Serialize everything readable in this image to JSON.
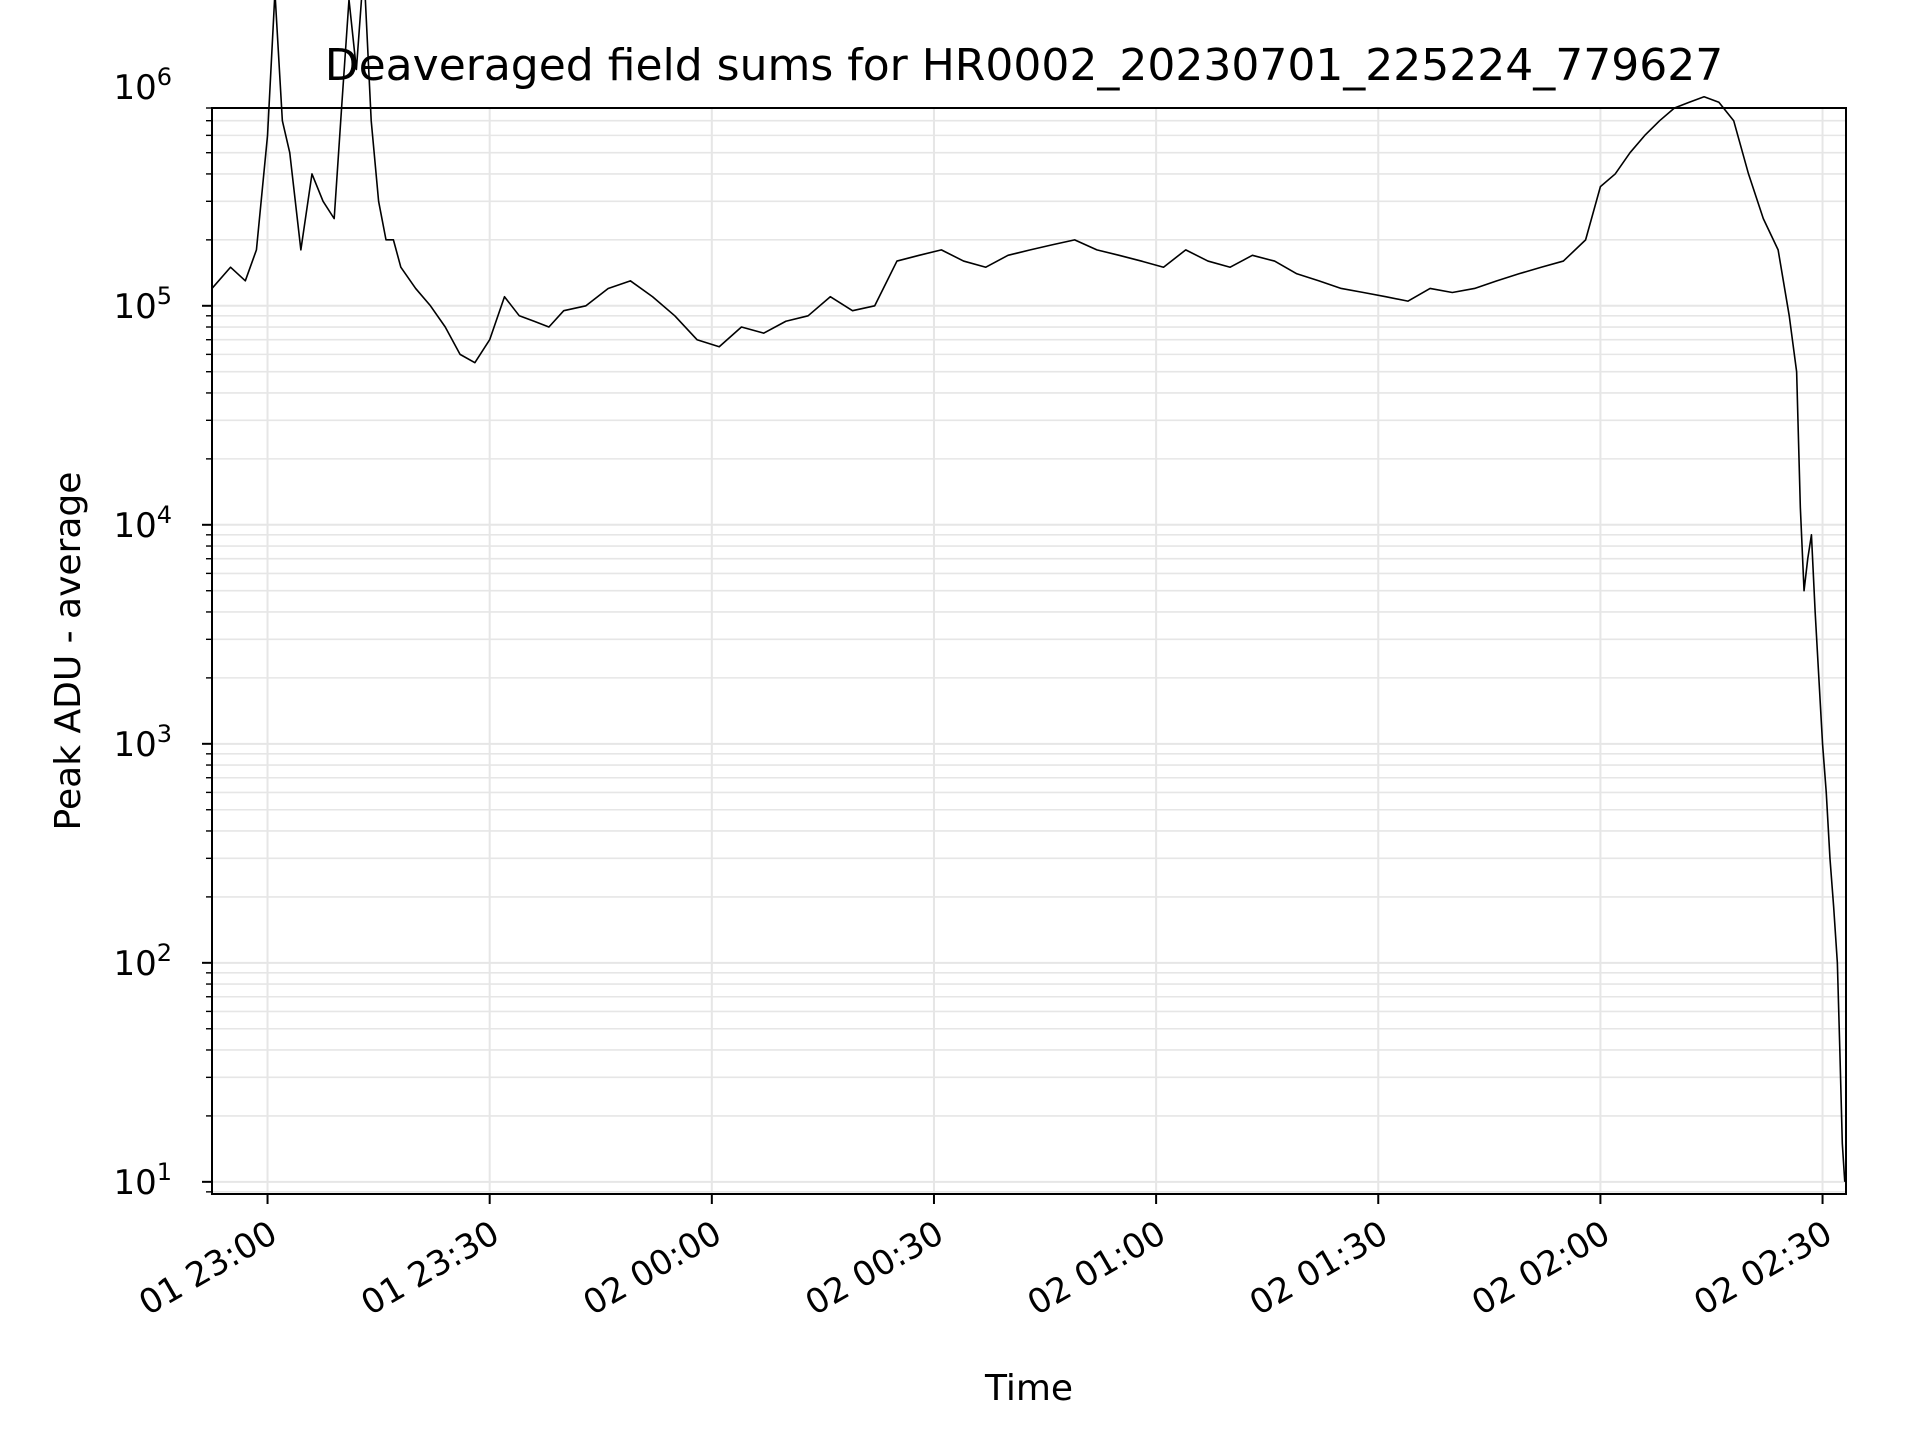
{
  "chart_data": {
    "type": "line",
    "title": "Deaveraged field sums for HR0002_20230701_225224_779627",
    "xlabel": "Time",
    "ylabel": "Peak ADU - average",
    "yscale": "log",
    "xlim": [
      "01 22:52:30",
      "02 02:33:10"
    ],
    "ylim": [
      8.8,
      800000
    ],
    "grid": true,
    "x_ticks": [
      "01 23:00",
      "01 23:30",
      "02 00:00",
      "02 00:30",
      "02 01:00",
      "02 01:30",
      "02 02:00",
      "02 02:30"
    ],
    "y_ticks": [
      {
        "base": "10",
        "exp": "1",
        "value": 10
      },
      {
        "base": "10",
        "exp": "2",
        "value": 100
      },
      {
        "base": "10",
        "exp": "3",
        "value": 1000
      },
      {
        "base": "10",
        "exp": "4",
        "value": 10000
      },
      {
        "base": "10",
        "exp": "5",
        "value": 100000
      },
      {
        "base": "10",
        "exp": "6",
        "value": 1000000
      }
    ],
    "line_color": "#000000",
    "grid_color": "#e6e6e6",
    "series": [
      {
        "x": [
          "01 22:52:30",
          "01 22:55:00",
          "01 22:57:00",
          "01 22:58:30",
          "01 23:00:00",
          "01 23:01:00",
          "01 23:02:00",
          "01 23:03:00",
          "01 23:04:30",
          "01 23:06:00",
          "01 23:07:30",
          "01 23:09:00",
          "01 23:10:00",
          "01 23:11:00",
          "01 23:12:00",
          "01 23:13:00",
          "01 23:14:00",
          "01 23:15:00",
          "01 23:16:00",
          "01 23:17:00",
          "01 23:18:00",
          "01 23:20:00",
          "01 23:22:00",
          "01 23:24:00",
          "01 23:26:00",
          "01 23:28:00",
          "01 23:30:00",
          "01 23:32:00",
          "01 23:34:00",
          "01 23:36:00",
          "01 23:38:00",
          "01 23:40:00",
          "01 23:43:00",
          "01 23:46:00",
          "01 23:49:00",
          "01 23:52:00",
          "01 23:55:00",
          "01 23:58:00",
          "02 00:01:00",
          "02 00:04:00",
          "02 00:07:00",
          "02 00:10:00",
          "02 00:13:00",
          "02 00:16:00",
          "02 00:19:00",
          "02 00:22:00",
          "02 00:25:00",
          "02 00:28:00",
          "02 00:31:00",
          "02 00:34:00",
          "02 00:37:00",
          "02 00:40:00",
          "02 00:43:00",
          "02 00:46:00",
          "02 00:49:00",
          "02 00:52:00",
          "02 00:55:00",
          "02 00:58:00",
          "02 01:01:00",
          "02 01:04:00",
          "02 01:07:00",
          "02 01:10:00",
          "02 01:13:00",
          "02 01:16:00",
          "02 01:19:00",
          "02 01:22:00",
          "02 01:25:00",
          "02 01:28:00",
          "02 01:31:00",
          "02 01:34:00",
          "02 01:37:00",
          "02 01:40:00",
          "02 01:43:00",
          "02 01:46:00",
          "02 01:49:00",
          "02 01:52:00",
          "02 01:55:00",
          "02 01:58:00",
          "02 02:00:00",
          "02 02:02:00",
          "02 02:04:00",
          "02 02:06:00",
          "02 02:08:00",
          "02 02:10:00",
          "02 02:12:00",
          "02 02:14:00",
          "02 02:16:00",
          "02 02:18:00",
          "02 02:20:00",
          "02 02:22:00",
          "02 02:24:00",
          "02 02:25:30",
          "02 02:26:30",
          "02 02:27:00",
          "02 02:27:30",
          "02 02:28:00",
          "02 02:28:30",
          "02 02:29:00",
          "02 02:29:30",
          "02 02:30:00",
          "02 02:30:30",
          "02 02:31:00",
          "02 02:31:30",
          "02 02:32:00",
          "02 02:32:20",
          "02 02:32:40",
          "02 02:33:00"
        ],
        "y": [
          120000,
          150000,
          130000,
          180000,
          600000,
          2700000,
          700000,
          500000,
          180000,
          400000,
          300000,
          250000,
          800000,
          2500000,
          1200000,
          3500000,
          700000,
          300000,
          200000,
          200000,
          150000,
          120000,
          100000,
          80000,
          60000,
          55000,
          70000,
          110000,
          90000,
          85000,
          80000,
          95000,
          100000,
          120000,
          130000,
          110000,
          90000,
          70000,
          65000,
          80000,
          75000,
          85000,
          90000,
          110000,
          95000,
          100000,
          160000,
          170000,
          180000,
          160000,
          150000,
          170000,
          180000,
          190000,
          200000,
          180000,
          170000,
          160000,
          150000,
          180000,
          160000,
          150000,
          170000,
          160000,
          140000,
          130000,
          120000,
          115000,
          110000,
          105000,
          120000,
          115000,
          120000,
          130000,
          140000,
          150000,
          160000,
          200000,
          350000,
          400000,
          500000,
          600000,
          700000,
          800000,
          850000,
          900000,
          850000,
          700000,
          400000,
          250000,
          180000,
          90000,
          50000,
          12000,
          5000,
          7000,
          9000,
          4000,
          2000,
          1000,
          600,
          300,
          180,
          100,
          40,
          15,
          10
        ]
      }
    ]
  }
}
